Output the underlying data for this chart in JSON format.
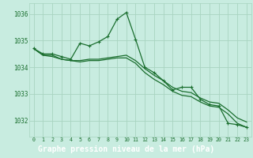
{
  "title": "Graphe pression niveau de la mer (hPa)",
  "background_color": "#c8ece0",
  "title_bg_color": "#2d6e3e",
  "title_text_color": "#ffffff",
  "grid_color": "#a8d4c0",
  "line_color": "#1a6e2e",
  "axis_color": "#1a6e2e",
  "x_ticks": [
    0,
    1,
    2,
    3,
    4,
    5,
    6,
    7,
    8,
    9,
    10,
    11,
    12,
    13,
    14,
    15,
    16,
    17,
    18,
    19,
    20,
    21,
    22,
    23
  ],
  "ylim": [
    1031.4,
    1036.4
  ],
  "yticks": [
    1032,
    1033,
    1034,
    1035,
    1036
  ],
  "series1": [
    1034.7,
    1034.5,
    1034.5,
    1034.4,
    1034.3,
    1034.9,
    1034.8,
    1034.95,
    1035.15,
    1035.8,
    1036.05,
    1035.05,
    1034.0,
    1033.8,
    1033.5,
    1033.15,
    1033.25,
    1033.25,
    1032.8,
    1032.6,
    1032.55,
    1031.9,
    1031.85,
    1031.75
  ],
  "series2": [
    1034.7,
    1034.45,
    1034.45,
    1034.3,
    1034.25,
    1034.25,
    1034.3,
    1034.3,
    1034.35,
    1034.4,
    1034.45,
    1034.25,
    1033.95,
    1033.7,
    1033.5,
    1033.25,
    1033.1,
    1033.05,
    1032.85,
    1032.7,
    1032.65,
    1032.4,
    1032.1,
    1031.95
  ],
  "series3": [
    1034.7,
    1034.45,
    1034.4,
    1034.3,
    1034.25,
    1034.2,
    1034.25,
    1034.25,
    1034.3,
    1034.35,
    1034.35,
    1034.15,
    1033.8,
    1033.55,
    1033.35,
    1033.1,
    1032.95,
    1032.9,
    1032.7,
    1032.55,
    1032.5,
    1032.25,
    1031.9,
    1031.75
  ]
}
